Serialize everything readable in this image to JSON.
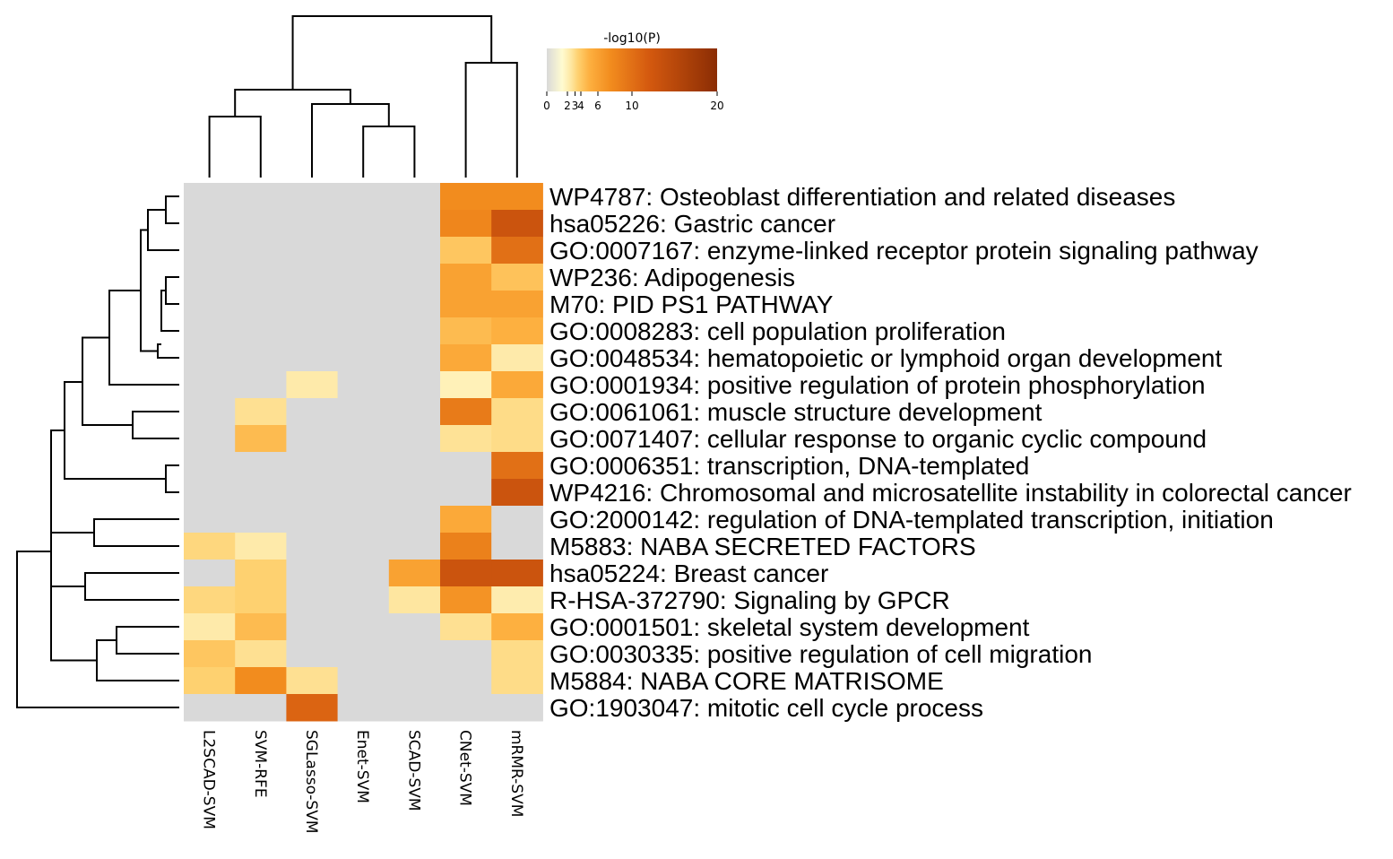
{
  "chart_data": {
    "type": "heatmap",
    "colorbar": {
      "title": "-log10(P)",
      "ticks": [
        "0",
        "2",
        "3",
        "4",
        "6",
        "10",
        "20"
      ],
      "tick_values": [
        0,
        2,
        3,
        4,
        6,
        10,
        20
      ],
      "range": [
        0,
        20
      ],
      "colors": [
        "#d9d9d9",
        "#fffbd0",
        "#fee6a0",
        "#fed170",
        "#fdb040",
        "#f28c1e",
        "#d4590f",
        "#8b2d04"
      ]
    },
    "nan_color": "#d9d9d9",
    "columns": [
      "L2SCAD-SVM",
      "SVM-RFE",
      "SGLasso-SVM",
      "Enet-SVM",
      "SCAD-SVM",
      "CNet-SVM",
      "mRMR-SVM"
    ],
    "rows": [
      "WP4787: Osteoblast differentiation and related diseases",
      "hsa05226: Gastric cancer",
      "GO:0007167: enzyme-linked receptor protein signaling pathway",
      "WP236: Adipogenesis",
      "M70: PID PS1 PATHWAY",
      "GO:0008283: cell population proliferation",
      "GO:0048534: hematopoietic or lymphoid organ development",
      "GO:0001934: positive regulation of protein phosphorylation",
      "GO:0061061: muscle structure development",
      "GO:0071407: cellular response to organic cyclic compound",
      "GO:0006351: transcription, DNA-templated",
      "WP4216: Chromosomal and microsatellite instability in colorectal cancer",
      "GO:2000142: regulation of DNA-templated transcription, initiation",
      "M5883: NABA SECRETED FACTORS",
      "hsa05224: Breast cancer",
      "R-HSA-372790: Signaling by GPCR",
      "GO:0001501: skeletal system development",
      "GO:0030335: positive regulation of cell migration",
      "M5884: NABA CORE MATRISOME",
      "GO:1903047: mitotic cell cycle process"
    ],
    "values": [
      [
        null,
        null,
        null,
        null,
        null,
        7.5,
        7.5
      ],
      [
        null,
        null,
        null,
        null,
        null,
        8,
        13
      ],
      [
        null,
        null,
        null,
        null,
        null,
        4,
        10
      ],
      [
        null,
        null,
        null,
        null,
        null,
        6,
        4.2
      ],
      [
        null,
        null,
        null,
        null,
        null,
        6,
        6
      ],
      [
        null,
        null,
        null,
        null,
        null,
        4.5,
        5
      ],
      [
        null,
        null,
        null,
        null,
        null,
        5.5,
        2.3
      ],
      [
        null,
        null,
        2.3,
        null,
        null,
        2,
        5.5
      ],
      [
        null,
        2.8,
        null,
        null,
        null,
        9,
        3
      ],
      [
        null,
        4.5,
        null,
        null,
        null,
        2.7,
        3
      ],
      [
        null,
        null,
        null,
        null,
        null,
        null,
        10
      ],
      [
        null,
        null,
        null,
        null,
        null,
        null,
        13
      ],
      [
        null,
        null,
        null,
        null,
        null,
        5.5,
        null
      ],
      [
        3.2,
        2.3,
        null,
        null,
        null,
        8.5,
        null
      ],
      [
        null,
        3.5,
        null,
        null,
        6,
        13,
        13
      ],
      [
        3.2,
        3.5,
        null,
        null,
        2.5,
        7,
        2.2
      ],
      [
        2.3,
        4.5,
        null,
        null,
        null,
        2.8,
        5
      ],
      [
        4,
        2.8,
        null,
        null,
        null,
        null,
        3
      ],
      [
        3.5,
        7.5,
        2.8,
        null,
        null,
        null,
        3
      ],
      [
        null,
        null,
        11,
        null,
        null,
        null,
        null
      ]
    ]
  }
}
